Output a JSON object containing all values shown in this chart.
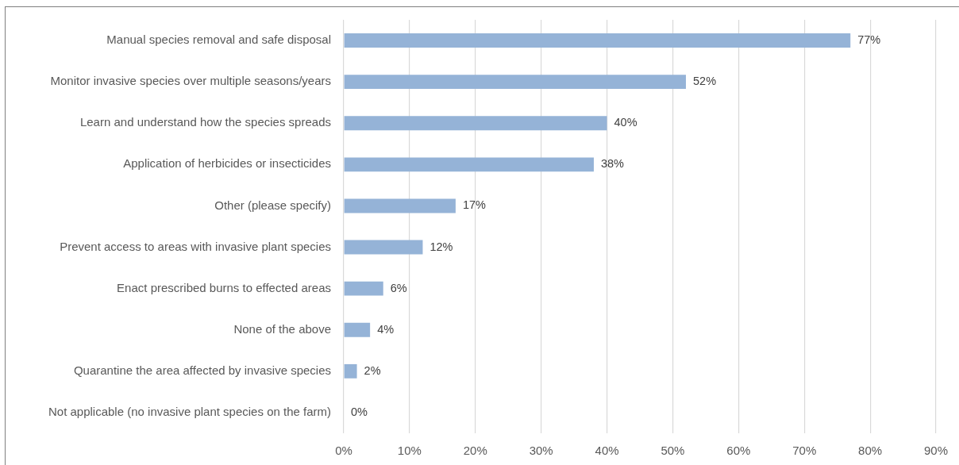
{
  "chart_data": {
    "type": "bar",
    "orientation": "horizontal",
    "categories": [
      "Manual species removal and safe disposal",
      "Monitor invasive species over multiple seasons/years",
      "Learn and understand how the species spreads",
      "Application of herbicides or insecticides",
      "Other (please specify)",
      "Prevent access to areas with invasive plant species",
      "Enact prescribed burns to effected areas",
      "None of the above",
      "Quarantine the area affected by invasive species",
      "Not applicable (no invasive plant species on the farm)"
    ],
    "values": [
      77,
      52,
      40,
      38,
      17,
      12,
      6,
      4,
      2,
      0
    ],
    "value_labels": [
      "77%",
      "52%",
      "40%",
      "38%",
      "17%",
      "12%",
      "6%",
      "4%",
      "2%",
      "0%"
    ],
    "color": "#95b3d7",
    "xlim": [
      0,
      90
    ],
    "xticks": [
      {
        "value": 0,
        "label": "0%"
      },
      {
        "value": 10,
        "label": "10%"
      },
      {
        "value": 20,
        "label": "20%"
      },
      {
        "value": 30,
        "label": "30%"
      },
      {
        "value": 40,
        "label": "40%"
      },
      {
        "value": 50,
        "label": "50%"
      },
      {
        "value": 60,
        "label": "60%"
      },
      {
        "value": 70,
        "label": "70%"
      },
      {
        "value": 80,
        "label": "80%"
      },
      {
        "value": 90,
        "label": "90%"
      }
    ],
    "grid": "x"
  }
}
